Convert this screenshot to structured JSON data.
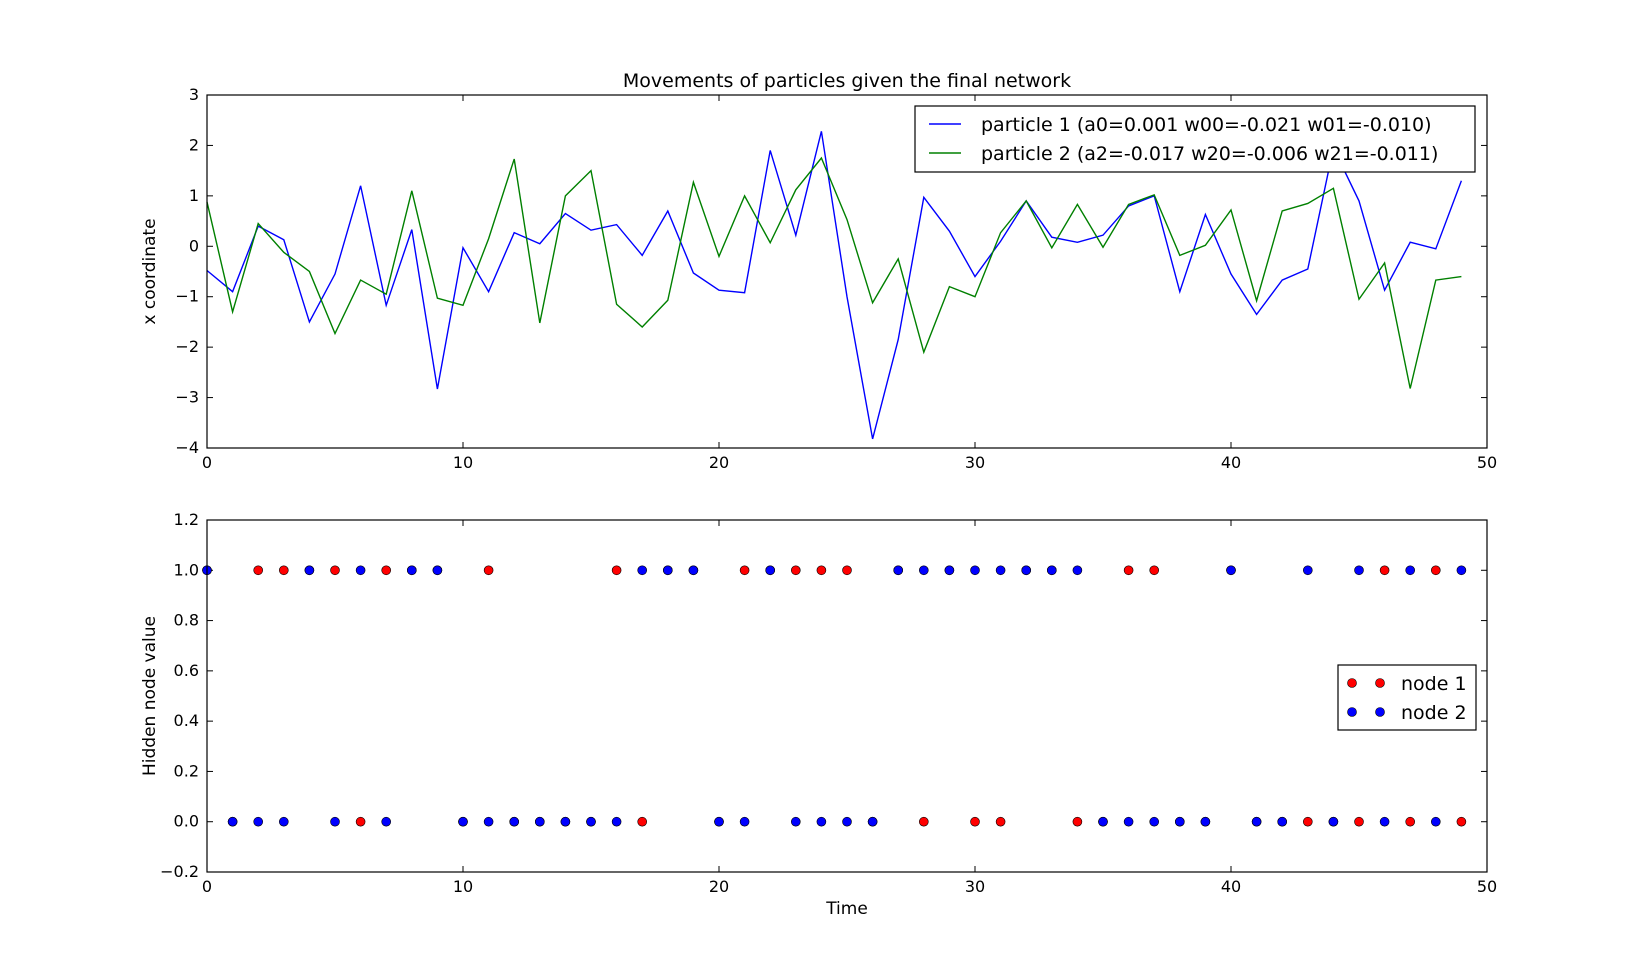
{
  "chart_data": [
    {
      "type": "line",
      "title": "Movements of particles given the final network",
      "xlabel": "",
      "ylabel": "x coordinate",
      "xlim": [
        0,
        50
      ],
      "ylim": [
        -4,
        3
      ],
      "x_ticks": [
        0,
        10,
        20,
        30,
        40,
        50
      ],
      "y_ticks": [
        -4,
        -3,
        -2,
        -1,
        0,
        1,
        2,
        3
      ],
      "x_tick_labels": [
        "0",
        "10",
        "20",
        "30",
        "40",
        "50"
      ],
      "y_tick_labels": [
        "−4",
        "−3",
        "−2",
        "−1",
        "0",
        "1",
        "2",
        "3"
      ],
      "grid": false,
      "legend_position": "top-right",
      "series": [
        {
          "name": "particle 1 (a0=0.001 w00=-0.021 w01=-0.010)",
          "color": "#0000ff",
          "x": [
            0,
            1,
            2,
            3,
            4,
            5,
            6,
            7,
            8,
            9,
            10,
            11,
            12,
            13,
            14,
            15,
            16,
            17,
            18,
            19,
            20,
            21,
            22,
            23,
            24,
            25,
            26,
            27,
            28,
            29,
            30,
            31,
            32,
            33,
            34,
            35,
            36,
            37,
            38,
            39,
            40,
            41,
            42,
            43,
            44,
            45,
            46,
            47,
            48,
            49
          ],
          "values": [
            -0.48,
            -0.9,
            0.4,
            0.13,
            -1.5,
            -0.55,
            1.2,
            -1.17,
            0.33,
            -2.83,
            -0.03,
            -0.9,
            0.27,
            0.05,
            0.65,
            0.32,
            0.43,
            -0.18,
            0.7,
            -0.53,
            -0.87,
            -0.92,
            1.9,
            0.22,
            2.28,
            -1.0,
            -3.82,
            -1.85,
            0.97,
            0.3,
            -0.6,
            0.1,
            0.9,
            0.18,
            0.08,
            0.22,
            0.8,
            1.0,
            -0.9,
            0.63,
            -0.55,
            -1.35,
            -0.67,
            -0.45,
            1.95,
            0.9,
            -0.87,
            0.08,
            -0.05,
            1.3
          ]
        },
        {
          "name": "particle 2 (a2=-0.017 w20=-0.006 w21=-0.011)",
          "color": "#008000",
          "x": [
            0,
            1,
            2,
            3,
            4,
            5,
            6,
            7,
            8,
            9,
            10,
            11,
            12,
            13,
            14,
            15,
            16,
            17,
            18,
            19,
            20,
            21,
            22,
            23,
            24,
            25,
            26,
            27,
            28,
            29,
            30,
            31,
            32,
            33,
            34,
            35,
            36,
            37,
            38,
            39,
            40,
            41,
            42,
            43,
            44,
            45,
            46,
            47,
            48,
            49
          ],
          "values": [
            0.88,
            -1.3,
            0.45,
            -0.12,
            -0.5,
            -1.73,
            -0.67,
            -0.95,
            1.1,
            -1.03,
            -1.17,
            0.15,
            1.73,
            -1.52,
            1.0,
            1.5,
            -1.15,
            -1.6,
            -1.07,
            1.27,
            -0.2,
            1.0,
            0.07,
            1.12,
            1.75,
            0.53,
            -1.12,
            -0.25,
            -2.1,
            -0.8,
            -1.0,
            0.27,
            0.9,
            -0.03,
            0.83,
            -0.02,
            0.83,
            1.02,
            -0.18,
            0.02,
            0.72,
            -1.08,
            0.7,
            0.85,
            1.15,
            -1.05,
            -0.33,
            -2.82,
            -0.67,
            -0.6
          ]
        }
      ]
    },
    {
      "type": "scatter",
      "title": "",
      "xlabel": "Time",
      "ylabel": "Hidden node value",
      "xlim": [
        0,
        50
      ],
      "ylim": [
        -0.2,
        1.2
      ],
      "x_ticks": [
        0,
        10,
        20,
        30,
        40,
        50
      ],
      "y_ticks": [
        -0.2,
        0.0,
        0.2,
        0.4,
        0.6,
        0.8,
        1.0,
        1.2
      ],
      "x_tick_labels": [
        "0",
        "10",
        "20",
        "30",
        "40",
        "50"
      ],
      "y_tick_labels": [
        "−0.2",
        "0.0",
        "0.2",
        "0.4",
        "0.6",
        "0.8",
        "1.0",
        "1.2"
      ],
      "grid": false,
      "legend_position": "center-right",
      "series": [
        {
          "name": "node 1",
          "color": "#ff0000",
          "x": [
            0,
            1,
            2,
            3,
            4,
            5,
            6,
            7,
            8,
            9,
            10,
            11,
            12,
            13,
            14,
            15,
            16,
            17,
            18,
            19,
            20,
            21,
            22,
            23,
            24,
            25,
            26,
            27,
            28,
            29,
            30,
            31,
            32,
            33,
            34,
            35,
            36,
            37,
            38,
            39,
            40,
            41,
            42,
            43,
            44,
            45,
            46,
            47,
            48,
            49
          ],
          "values": [
            1,
            0,
            1,
            1,
            1,
            1,
            0,
            1,
            1,
            1,
            0,
            1,
            0,
            0,
            0,
            0,
            1,
            0,
            1,
            1,
            0,
            1,
            1,
            1,
            1,
            1,
            0,
            1,
            0,
            1,
            0,
            0,
            1,
            1,
            0,
            0,
            1,
            1,
            0,
            0,
            1,
            0,
            0,
            0,
            0,
            0,
            1,
            0,
            1,
            0
          ]
        },
        {
          "name": "node 2",
          "color": "#0000ff",
          "x": [
            0,
            1,
            2,
            3,
            4,
            5,
            6,
            7,
            8,
            9,
            10,
            11,
            12,
            13,
            14,
            15,
            16,
            17,
            18,
            19,
            20,
            21,
            22,
            23,
            24,
            25,
            26,
            27,
            28,
            29,
            30,
            31,
            32,
            33,
            34,
            35,
            36,
            37,
            38,
            39,
            40,
            41,
            42,
            43,
            44,
            45,
            46,
            47,
            48,
            49
          ],
          "values": [
            1,
            0,
            0,
            0,
            1,
            0,
            1,
            0,
            1,
            1,
            0,
            0,
            0,
            0,
            0,
            0,
            0,
            1,
            1,
            1,
            0,
            0,
            1,
            0,
            0,
            0,
            0,
            1,
            1,
            1,
            1,
            1,
            1,
            1,
            1,
            0,
            0,
            0,
            0,
            0,
            1,
            0,
            0,
            1,
            0,
            1,
            0,
            1,
            0,
            1
          ]
        }
      ]
    }
  ]
}
